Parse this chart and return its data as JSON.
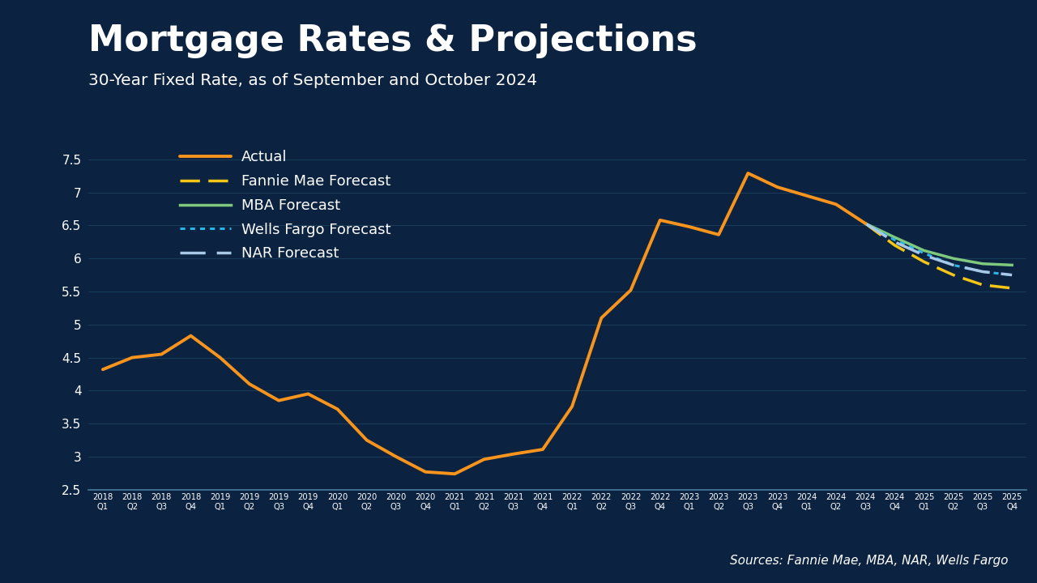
{
  "title": "Mortgage Rates & Projections",
  "subtitle": "30-Year Fixed Rate, as of September and October 2024",
  "source": "Sources: Fannie Mae, MBA, NAR, Wells Fargo",
  "bg_color": "#0b2240",
  "footer_color": "#1a5080",
  "text_color": "#ffffff",
  "ylim": [
    2.5,
    7.75
  ],
  "yticks": [
    2.5,
    3.0,
    3.5,
    4.0,
    4.5,
    5.0,
    5.5,
    6.0,
    6.5,
    7.0,
    7.5
  ],
  "ytick_labels": [
    "2.5",
    "3",
    "3.5",
    "4",
    "4.5",
    "5",
    "5.5",
    "6",
    "6.5",
    "7",
    "7.5"
  ],
  "actual_color": "#f7941d",
  "fannie_color": "#f5c518",
  "mba_color": "#7fc97f",
  "wellsfargo_color": "#29b5e8",
  "nar_color": "#a8c8e8",
  "actual_x": [
    0,
    1,
    2,
    3,
    4,
    5,
    6,
    7,
    8,
    9,
    10,
    11,
    12,
    13,
    14,
    15,
    16,
    17,
    18,
    19,
    20,
    21,
    22,
    23,
    24,
    25,
    26
  ],
  "actual_y": [
    4.32,
    4.5,
    4.55,
    4.83,
    4.5,
    4.1,
    3.85,
    3.95,
    3.72,
    3.25,
    3.0,
    2.77,
    2.74,
    2.96,
    3.04,
    3.11,
    3.76,
    5.1,
    5.52,
    6.58,
    6.48,
    6.36,
    7.29,
    7.08,
    6.95,
    6.82,
    6.53
  ],
  "forecast_x": [
    26,
    27,
    28,
    29,
    30,
    31
  ],
  "fannie_y": [
    6.53,
    6.2,
    5.95,
    5.75,
    5.6,
    5.55
  ],
  "mba_y": [
    6.53,
    6.32,
    6.12,
    6.0,
    5.92,
    5.9
  ],
  "wf_y": [
    6.53,
    6.28,
    6.08,
    5.9,
    5.8,
    5.75
  ],
  "nar_y": [
    6.53,
    6.25,
    6.05,
    5.9,
    5.8,
    5.75
  ],
  "xtick_labels": [
    "2018\nQ1",
    "2018\nQ2",
    "2018\nQ3",
    "2018\nQ4",
    "2019\nQ1",
    "2019\nQ2",
    "2019\nQ3",
    "2019\nQ4",
    "2020\nQ1",
    "2020\nQ2",
    "2020\nQ3",
    "2020\nQ4",
    "2021\nQ1",
    "2021\nQ2",
    "2021\nQ3",
    "2021\nQ4",
    "2022\nQ1",
    "2022\nQ2",
    "2022\nQ3",
    "2022\nQ4",
    "2023\nQ1",
    "2023\nQ2",
    "2023\nQ3",
    "2023\nQ4",
    "2024\nQ1",
    "2024\nQ2",
    "2024\nQ3",
    "2024\nQ4",
    "2025\nQ1",
    "2025\nQ2",
    "2025\nQ3",
    "2025\nQ4"
  ]
}
